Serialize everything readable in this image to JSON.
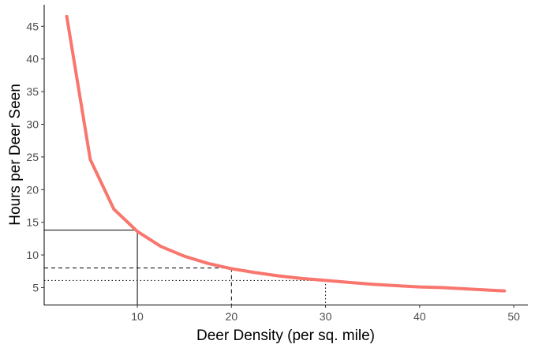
{
  "chart_data": {
    "type": "line",
    "title": "",
    "xlabel": "Deer Density (per sq. mile)",
    "ylabel": "Hours per Deer Seen",
    "xlim": [
      0.1,
      51.5
    ],
    "ylim": [
      2.4,
      48.3
    ],
    "x_ticks": [
      10,
      20,
      30,
      40,
      50
    ],
    "y_ticks": [
      5,
      10,
      15,
      20,
      25,
      30,
      35,
      40,
      45
    ],
    "grid": false,
    "line_color": "#F8766D",
    "series": [
      {
        "x": [
          2.5,
          5,
          7.5,
          10,
          12.5,
          15,
          17.5,
          20,
          22.5,
          25,
          27.5,
          30,
          32.5,
          35,
          37.5,
          40,
          42.5,
          45,
          47.5,
          49
        ],
        "y": [
          46.5,
          24.6,
          17.0,
          13.6,
          11.3,
          9.8,
          8.7,
          7.9,
          7.3,
          6.8,
          6.4,
          6.1,
          5.8,
          5.5,
          5.3,
          5.1,
          5.0,
          4.8,
          4.6,
          4.5
        ]
      }
    ],
    "reference_lines": [
      {
        "style": "solid",
        "x": 10,
        "y": 13.8
      },
      {
        "style": "dashed",
        "x": 20,
        "y": 8.0
      },
      {
        "style": "dotted",
        "x": 30,
        "y": 6.1
      }
    ]
  }
}
